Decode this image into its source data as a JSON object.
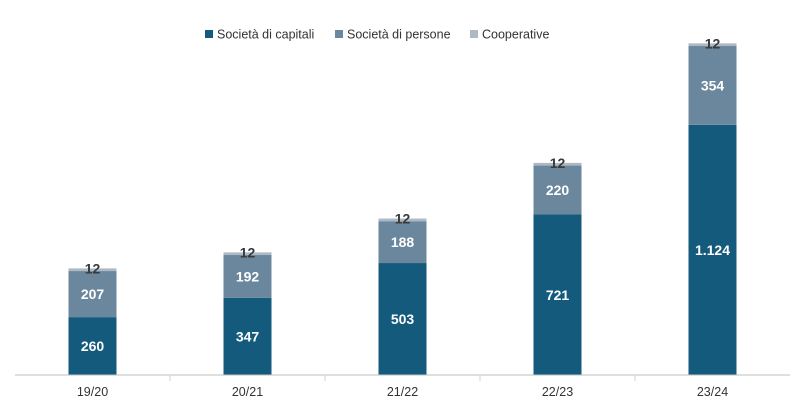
{
  "chart_data": {
    "type": "bar",
    "stacked": true,
    "categories": [
      "19/20",
      "20/21",
      "21/22",
      "22/23",
      "23/24"
    ],
    "series": [
      {
        "name": "Società di capitali",
        "values": [
          260,
          347,
          503,
          721,
          1124
        ],
        "labels": [
          "260",
          "347",
          "503",
          "721",
          "1.124"
        ],
        "color": "#145a7c"
      },
      {
        "name": "Società di persone",
        "values": [
          207,
          192,
          188,
          220,
          354
        ],
        "labels": [
          "207",
          "192",
          "188",
          "220",
          "354"
        ],
        "color": "#6a879d"
      },
      {
        "name": "Cooperative",
        "values": [
          12,
          12,
          12,
          12,
          12
        ],
        "labels": [
          "12",
          "12",
          "12",
          "12",
          "12"
        ],
        "color": "#aeb9c3"
      }
    ],
    "ylim": [
      0,
      1550
    ],
    "legend_position": "top-center",
    "grid": false
  }
}
